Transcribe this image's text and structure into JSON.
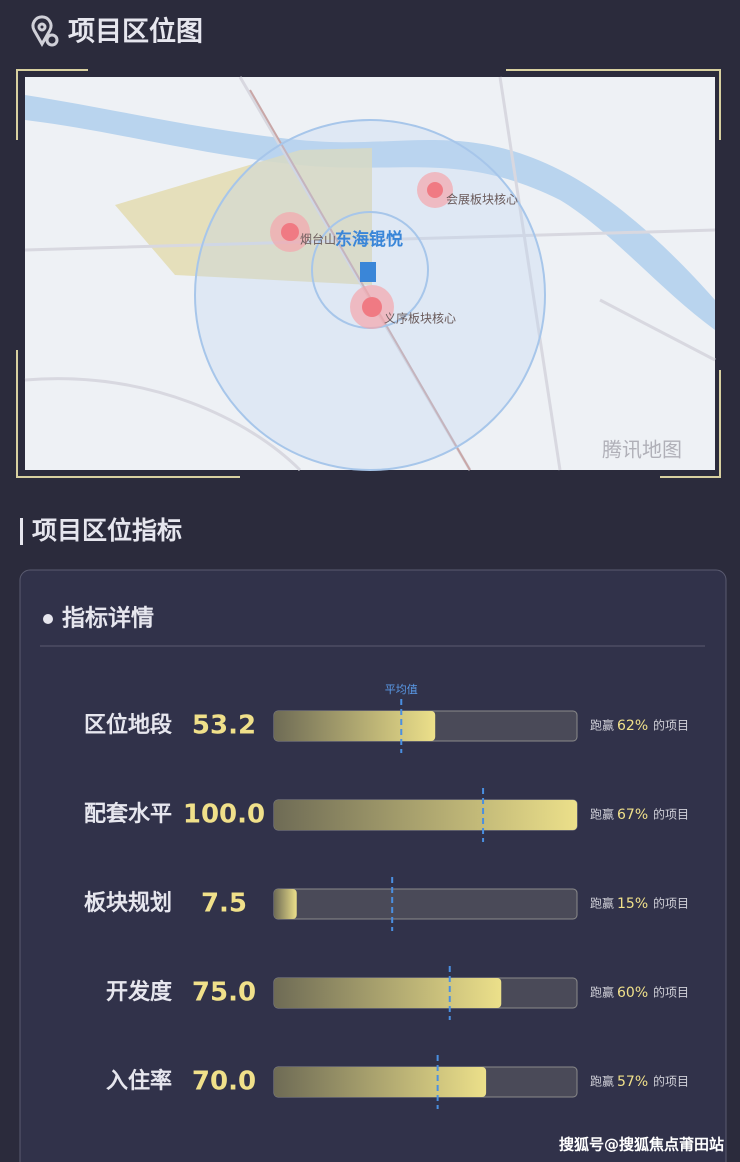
{
  "header": {
    "title": "项目区位图"
  },
  "map": {
    "labels": {
      "project": "东海锟悦",
      "yantaishan": "烟台山",
      "huizhan": "会展板块核心",
      "yixu": "义序板块核心"
    },
    "provider": "腾讯地图"
  },
  "section": {
    "title": "项目区位指标"
  },
  "card": {
    "title": "指标详情",
    "average_label": "平均值",
    "scale": [
      0,
      100
    ],
    "rows": [
      {
        "name": "区位地段",
        "score": {
          "value": 53.2,
          "label": "53.2"
        },
        "average": 42,
        "beat_prefix": "跑赢",
        "beat": "62%",
        "beat_suffix": "的项目"
      },
      {
        "name": "配套水平",
        "score": {
          "value": 100,
          "label": "100.0"
        },
        "average": 69,
        "beat_prefix": "跑赢",
        "beat": "67%",
        "beat_suffix": "的项目"
      },
      {
        "name": "板块规划",
        "score": {
          "value": 7.5,
          "label": "7.5"
        },
        "average": 39,
        "beat_prefix": "跑赢",
        "beat": "15%",
        "beat_suffix": "的项目"
      },
      {
        "name": "开发度",
        "score": {
          "value": 75,
          "label": "75.0"
        },
        "average": 58,
        "beat_prefix": "跑赢",
        "beat": "60%",
        "beat_suffix": "的项目"
      },
      {
        "name": "入住率",
        "score": {
          "value": 70,
          "label": "70.0"
        },
        "average": 54,
        "beat_prefix": "跑赢",
        "beat": "57%",
        "beat_suffix": "的项目"
      }
    ]
  },
  "watermark": "搜狐号@搜狐焦点莆田站"
}
